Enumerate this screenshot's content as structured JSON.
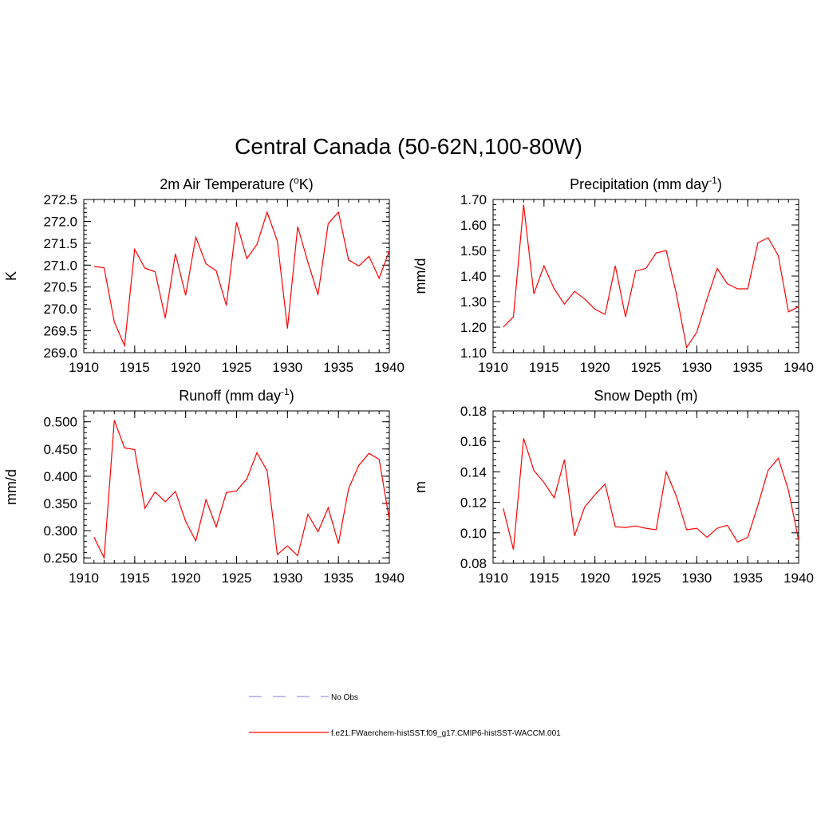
{
  "title": "Central Canada (50-62N,100-80W)",
  "legend": {
    "entries": [
      {
        "label": "No Obs",
        "color": "#9a9ae6",
        "style": "dashed"
      },
      {
        "label": "f.e21.FWaerchem-histSST.f09_g17.CMIP6-histSST-WACCM.001",
        "color": "#ff0000",
        "style": "solid"
      }
    ]
  },
  "line_color": "#ff0000",
  "chart_data": [
    {
      "type": "line",
      "title_prefix": "2m Air Temperature (",
      "title_sup": "o",
      "title_suffix": "K)",
      "ylabel": "K",
      "xlim": [
        1910,
        1940
      ],
      "ylim": [
        269.0,
        272.5
      ],
      "xticks": [
        1910,
        1915,
        1920,
        1925,
        1930,
        1935,
        1940
      ],
      "xtick_labels": [
        "1910",
        "1915",
        "1920",
        "1925",
        "1930",
        "1935",
        "1940"
      ],
      "yticks": [
        269.0,
        269.5,
        270.0,
        270.5,
        271.0,
        271.5,
        272.0,
        272.5
      ],
      "ytick_labels": [
        "269.0",
        "269.5",
        "270.0",
        "270.5",
        "271.0",
        "271.5",
        "272.0",
        "272.5"
      ],
      "x": [
        1911,
        1912,
        1913,
        1914,
        1915,
        1916,
        1917,
        1918,
        1919,
        1920,
        1921,
        1922,
        1923,
        1924,
        1925,
        1926,
        1927,
        1928,
        1929,
        1930,
        1931,
        1932,
        1933,
        1934,
        1935,
        1936,
        1937,
        1938,
        1939,
        1940
      ],
      "values": [
        270.97,
        270.94,
        269.7,
        269.16,
        271.36,
        270.93,
        270.85,
        269.79,
        271.26,
        270.31,
        271.64,
        271.03,
        270.87,
        270.08,
        271.98,
        271.15,
        271.47,
        272.21,
        271.55,
        269.55,
        271.88,
        271.07,
        270.32,
        271.95,
        272.21,
        271.12,
        270.98,
        271.2,
        270.7,
        271.33
      ]
    },
    {
      "type": "line",
      "title_prefix": "Precipitation (mm day",
      "title_sup": "-1",
      "title_suffix": ")",
      "ylabel": "mm/d",
      "xlim": [
        1910,
        1940
      ],
      "ylim": [
        1.1,
        1.7
      ],
      "xticks": [
        1910,
        1915,
        1920,
        1925,
        1930,
        1935,
        1940
      ],
      "xtick_labels": [
        "1910",
        "1915",
        "1920",
        "1925",
        "1930",
        "1935",
        "1940"
      ],
      "yticks": [
        1.1,
        1.2,
        1.3,
        1.4,
        1.5,
        1.6,
        1.7
      ],
      "ytick_labels": [
        "1.10",
        "1.20",
        "1.30",
        "1.40",
        "1.50",
        "1.60",
        "1.70"
      ],
      "x": [
        1911,
        1912,
        1913,
        1914,
        1915,
        1916,
        1917,
        1918,
        1919,
        1920,
        1921,
        1922,
        1923,
        1924,
        1925,
        1926,
        1927,
        1928,
        1929,
        1930,
        1931,
        1932,
        1933,
        1934,
        1935,
        1936,
        1937,
        1938,
        1939,
        1940
      ],
      "values": [
        1.2,
        1.24,
        1.68,
        1.33,
        1.44,
        1.35,
        1.29,
        1.34,
        1.31,
        1.27,
        1.25,
        1.44,
        1.24,
        1.42,
        1.43,
        1.49,
        1.5,
        1.33,
        1.12,
        1.18,
        1.31,
        1.43,
        1.37,
        1.35,
        1.35,
        1.53,
        1.55,
        1.48,
        1.26,
        1.28
      ]
    },
    {
      "type": "line",
      "title_prefix": "Runoff (mm day",
      "title_sup": "-1",
      "title_suffix": ")",
      "ylabel": "mm/d",
      "xlim": [
        1910,
        1940
      ],
      "ylim": [
        0.24,
        0.52
      ],
      "xticks": [
        1910,
        1915,
        1920,
        1925,
        1930,
        1935,
        1940
      ],
      "xtick_labels": [
        "1910",
        "1915",
        "1920",
        "1925",
        "1930",
        "1935",
        "1940"
      ],
      "yticks": [
        0.25,
        0.3,
        0.35,
        0.4,
        0.45,
        0.5
      ],
      "ytick_labels": [
        "0.250",
        "0.300",
        "0.350",
        "0.400",
        "0.450",
        "0.500"
      ],
      "x": [
        1911,
        1912,
        1913,
        1914,
        1915,
        1916,
        1917,
        1918,
        1919,
        1920,
        1921,
        1922,
        1923,
        1924,
        1925,
        1926,
        1927,
        1928,
        1929,
        1930,
        1931,
        1932,
        1933,
        1934,
        1935,
        1936,
        1937,
        1938,
        1939,
        1940
      ],
      "values": [
        0.288,
        0.25,
        0.503,
        0.452,
        0.449,
        0.341,
        0.371,
        0.353,
        0.372,
        0.317,
        0.281,
        0.357,
        0.307,
        0.37,
        0.373,
        0.395,
        0.443,
        0.41,
        0.256,
        0.272,
        0.254,
        0.33,
        0.298,
        0.342,
        0.276,
        0.377,
        0.42,
        0.442,
        0.431,
        0.32
      ]
    },
    {
      "type": "line",
      "title_prefix": "Snow Depth (m)",
      "title_sup": "",
      "title_suffix": "",
      "ylabel": "m",
      "xlim": [
        1910,
        1940
      ],
      "ylim": [
        0.08,
        0.18
      ],
      "xticks": [
        1910,
        1915,
        1920,
        1925,
        1930,
        1935,
        1940
      ],
      "xtick_labels": [
        "1910",
        "1915",
        "1920",
        "1925",
        "1930",
        "1935",
        "1940"
      ],
      "yticks": [
        0.08,
        0.1,
        0.12,
        0.14,
        0.16,
        0.18
      ],
      "ytick_labels": [
        "0.08",
        "0.10",
        "0.12",
        "0.14",
        "0.16",
        "0.18"
      ],
      "x": [
        1911,
        1912,
        1913,
        1914,
        1915,
        1916,
        1917,
        1918,
        1919,
        1920,
        1921,
        1922,
        1923,
        1924,
        1925,
        1926,
        1927,
        1928,
        1929,
        1930,
        1931,
        1932,
        1933,
        1934,
        1935,
        1936,
        1937,
        1938,
        1939,
        1940
      ],
      "values": [
        0.116,
        0.089,
        0.162,
        0.141,
        0.133,
        0.123,
        0.148,
        0.098,
        0.117,
        0.125,
        0.132,
        0.104,
        0.1035,
        0.1045,
        0.103,
        0.102,
        0.14,
        0.124,
        0.102,
        0.103,
        0.097,
        0.103,
        0.105,
        0.094,
        0.097,
        0.118,
        0.141,
        0.149,
        0.128,
        0.095
      ]
    }
  ]
}
